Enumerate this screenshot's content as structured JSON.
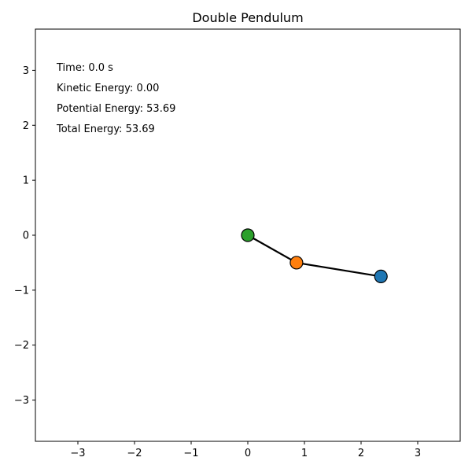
{
  "chart_data": {
    "type": "scatter",
    "title": "Double Pendulum",
    "xlabel": "",
    "ylabel": "",
    "xlim": [
      -3.75,
      3.75
    ],
    "ylim": [
      -3.75,
      3.75
    ],
    "xticks": [
      {
        "value": -3,
        "label": "−3"
      },
      {
        "value": -2,
        "label": "−2"
      },
      {
        "value": -1,
        "label": "−1"
      },
      {
        "value": 0,
        "label": "0"
      },
      {
        "value": 1,
        "label": "1"
      },
      {
        "value": 2,
        "label": "2"
      },
      {
        "value": 3,
        "label": "3"
      }
    ],
    "yticks": [
      {
        "value": -3,
        "label": "−3"
      },
      {
        "value": -2,
        "label": "−2"
      },
      {
        "value": -1,
        "label": "−1"
      },
      {
        "value": 0,
        "label": "0"
      },
      {
        "value": 1,
        "label": "1"
      },
      {
        "value": 2,
        "label": "2"
      },
      {
        "value": 3,
        "label": "3"
      }
    ],
    "grid": false,
    "rod": {
      "x": [
        0,
        0.86,
        2.35
      ],
      "y": [
        0,
        -0.5,
        -0.75
      ],
      "color": "#000000"
    },
    "points": [
      {
        "x": 0,
        "y": 0,
        "color": "#2ca02c",
        "name": "pivot"
      },
      {
        "x": 0.86,
        "y": -0.5,
        "color": "#ff7f0e",
        "name": "bob-1"
      },
      {
        "x": 2.35,
        "y": -0.75,
        "color": "#1f77b4",
        "name": "bob-2"
      }
    ],
    "annotations": [
      "Time: 0.0 s",
      "Kinetic Energy: 0.00",
      "Potential Energy: 53.69",
      "Total Energy: 53.69"
    ]
  }
}
